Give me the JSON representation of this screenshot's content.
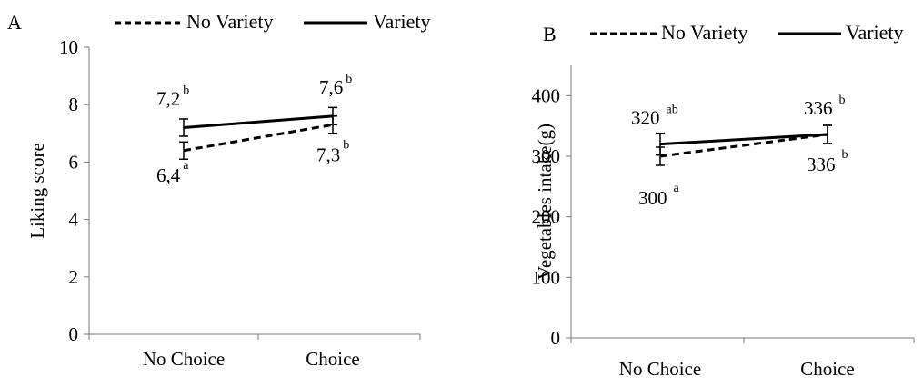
{
  "chart_data": [
    {
      "type": "line",
      "panel": "A",
      "ylabel": "Liking score",
      "xlabel": "",
      "categories": [
        "No Choice",
        "Choice"
      ],
      "ylim": [
        0,
        10
      ],
      "yticks": [
        0,
        2,
        4,
        6,
        8,
        10
      ],
      "grid": false,
      "legend": "top",
      "series": [
        {
          "name": "No Variety",
          "style": "dashed",
          "values": [
            6.4,
            7.3
          ],
          "error": [
            0.3,
            0.3
          ],
          "labels": [
            "6,4",
            "7,3"
          ],
          "letters": [
            "a",
            "b"
          ]
        },
        {
          "name": "Variety",
          "style": "solid",
          "values": [
            7.2,
            7.6
          ],
          "error": [
            0.3,
            0.3
          ],
          "labels": [
            "7,2",
            "7,6"
          ],
          "letters": [
            "b",
            "b"
          ]
        }
      ]
    },
    {
      "type": "line",
      "panel": "B",
      "ylabel": "Vegetables intake(g)",
      "xlabel": "",
      "categories": [
        "No Choice",
        "Choice"
      ],
      "ylim": [
        0,
        450
      ],
      "yticks": [
        0,
        100,
        200,
        300,
        400
      ],
      "grid": false,
      "legend": "top",
      "series": [
        {
          "name": "No Variety",
          "style": "dashed",
          "values": [
            300,
            336
          ],
          "error": [
            15,
            15
          ],
          "labels": [
            "300",
            "336"
          ],
          "letters": [
            "a",
            "b"
          ]
        },
        {
          "name": "Variety",
          "style": "solid",
          "values": [
            320,
            336
          ],
          "error": [
            18,
            15
          ],
          "labels": [
            "320",
            "336"
          ],
          "letters": [
            "ab",
            "b"
          ]
        }
      ]
    }
  ]
}
